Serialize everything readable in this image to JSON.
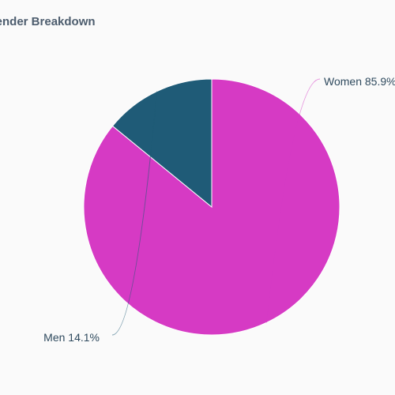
{
  "chart_data": {
    "type": "pie",
    "title": "Gender Breakdown",
    "categories": [
      "Women",
      "Men"
    ],
    "values": [
      85.9,
      14.1
    ],
    "labels": [
      "Women 85.9%",
      "Men 14.1%"
    ],
    "colors": [
      "#d63ac4",
      "#1f5b77"
    ]
  }
}
